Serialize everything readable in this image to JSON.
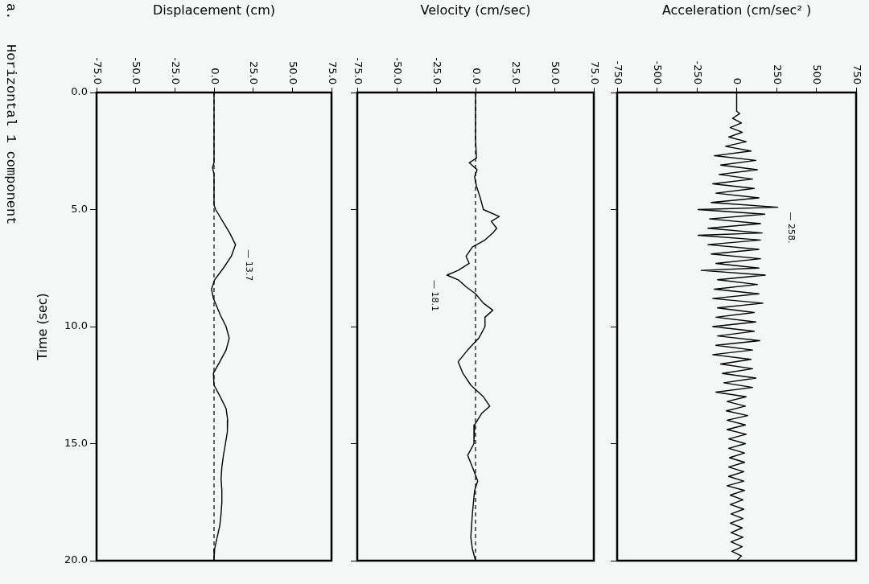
{
  "chart_data": [
    {
      "type": "line",
      "ylabel": "Time (sec)",
      "xlabel": "Displacement (cm)",
      "ylim": [
        20,
        0
      ],
      "yticks": [
        {
          "value": 0,
          "label": "0.0"
        },
        {
          "value": 5,
          "label": "5.0"
        },
        {
          "value": 10,
          "label": "10.0"
        },
        {
          "value": 15,
          "label": "15.0"
        },
        {
          "value": 20,
          "label": "20.0"
        }
      ],
      "xlim": [
        -75,
        75
      ],
      "xticks": [
        {
          "value": -75,
          "label": "-75.0"
        },
        {
          "value": -50,
          "label": "-50.0"
        },
        {
          "value": -25,
          "label": "-25.0"
        },
        {
          "value": 0,
          "label": "0.0"
        },
        {
          "value": 25,
          "label": "25.0"
        },
        {
          "value": 50,
          "label": "50.0"
        },
        {
          "value": 75,
          "label": "75.0"
        }
      ],
      "series": [
        {
          "color": "#000000",
          "x": [
            0,
            0,
            -1,
            0,
            0,
            1,
            10,
            13.7,
            11,
            6,
            0.4,
            -1.6,
            -0.4,
            4,
            7.7,
            9.7,
            7.7,
            3.7,
            -0.4,
            0,
            4,
            7.7,
            8.7,
            8.5,
            7.3,
            6,
            5,
            4.5,
            5,
            5,
            4.5,
            3.7,
            2,
            0.4,
            0
          ],
          "values": [
            0,
            3,
            3.2,
            3.5,
            4.8,
            5,
            6,
            6.5,
            7,
            7.5,
            8,
            8.4,
            8.8,
            9.5,
            10,
            10.5,
            11,
            11.5,
            12,
            12.5,
            13,
            13.5,
            14,
            14.5,
            15,
            15.5,
            16,
            16.5,
            17,
            17.5,
            18,
            18.5,
            19,
            19.5,
            20
          ]
        }
      ],
      "ref_lines": [
        {
          "axis": "x",
          "value": 0,
          "line_style": "dashed",
          "color": "#000000"
        }
      ],
      "annotations": [
        {
          "text": "— 13.7",
          "x": 13.7,
          "y": 6.5
        },
        "a.   Horizontal 1 component"
      ]
    },
    {
      "type": "line",
      "xlabel": "Velocity (cm/sec)",
      "ylim": [
        20,
        0
      ],
      "yticks": [
        {
          "value": 0,
          "label": null
        },
        {
          "value": 5,
          "label": null
        },
        {
          "value": 10,
          "label": null
        },
        {
          "value": 15,
          "label": null
        },
        {
          "value": 20,
          "label": null
        }
      ],
      "xlim": [
        -75,
        75
      ],
      "xticks": [
        {
          "value": -75,
          "label": "-75.0"
        },
        {
          "value": -50,
          "label": "-50.0"
        },
        {
          "value": -25,
          "label": "-25.0"
        },
        {
          "value": 0,
          "label": "0.0"
        },
        {
          "value": 25,
          "label": "25.0"
        },
        {
          "value": 50,
          "label": "50.0"
        },
        {
          "value": 75,
          "label": "75.0"
        }
      ],
      "tick_labels": "x",
      "series": [
        {
          "color": "#000000",
          "x": [
            0,
            0,
            0.6,
            -4,
            1,
            -0.6,
            0.6,
            3,
            5,
            15,
            10,
            13.4,
            11,
            6,
            -2,
            -6,
            -4,
            -11,
            -18.1,
            -11,
            -6,
            0,
            5,
            11,
            6,
            6,
            2,
            -5,
            -11,
            -8,
            -3,
            5,
            9,
            4,
            -0.6,
            -1,
            -5,
            -2,
            1.4,
            -0.6,
            -2,
            -3,
            -2,
            0
          ],
          "values": [
            0,
            2,
            2.8,
            3,
            3.3,
            3.6,
            4,
            4.5,
            5,
            5.3,
            5.5,
            5.8,
            6,
            6.3,
            6.6,
            7,
            7.3,
            7.6,
            7.8,
            8,
            8.3,
            8.6,
            9,
            9.3,
            9.6,
            10,
            10.5,
            11,
            11.5,
            12,
            12.5,
            13,
            13.4,
            13.7,
            14.2,
            15,
            15.5,
            16,
            16.6,
            17,
            18,
            19,
            19.5,
            20
          ]
        }
      ],
      "ref_lines": [
        {
          "axis": "x",
          "value": 0,
          "line_style": "dashed",
          "color": "#000000"
        }
      ],
      "annotations": [
        {
          "text": "— 18.1",
          "x": -18.1,
          "y": 7.8
        }
      ]
    },
    {
      "type": "line",
      "xlabel": "Acceleration (cm/sec² )",
      "ylim": [
        20,
        0
      ],
      "yticks": [
        {
          "value": 0,
          "label": null
        },
        {
          "value": 5,
          "label": null
        },
        {
          "value": 10,
          "label": null
        },
        {
          "value": 15,
          "label": null
        },
        {
          "value": 20,
          "label": null
        }
      ],
      "xlim": [
        -750,
        750
      ],
      "xticks": [
        -750,
        -500,
        -250,
        0,
        250,
        500,
        750
      ],
      "tick_labels": "x",
      "series": [
        {
          "color": "#000000",
          "x": [
            0,
            0,
            20,
            -25,
            30,
            -40,
            35,
            -50,
            60,
            -70,
            90,
            -140,
            120,
            -100,
            130,
            -110,
            100,
            -150,
            110,
            -130,
            140,
            -160,
            258,
            -242,
            177,
            -170,
            150,
            -180,
            160,
            -242,
            150,
            -180,
            140,
            -160,
            150,
            -130,
            140,
            -222,
            180,
            -120,
            130,
            -140,
            140,
            -150,
            165,
            -120,
            110,
            -130,
            120,
            -150,
            110,
            -120,
            145,
            -130,
            100,
            -150,
            90,
            -100,
            100,
            -90,
            121,
            -80,
            100,
            -130,
            60,
            -60,
            55,
            -65,
            70,
            -60,
            55,
            -60,
            60,
            -50,
            55,
            -50,
            50,
            -45,
            50,
            -50,
            45,
            -50,
            45,
            -60,
            50,
            -40,
            40,
            -40,
            45,
            -35,
            40,
            -40,
            35,
            -35,
            40,
            -35,
            35,
            -30,
            30,
            0
          ],
          "values": [
            0,
            0.8,
            0.9,
            1.1,
            1.3,
            1.5,
            1.7,
            1.9,
            2.1,
            2.3,
            2.5,
            2.7,
            2.9,
            3.1,
            3.3,
            3.5,
            3.7,
            3.9,
            4.1,
            4.3,
            4.5,
            4.7,
            4.9,
            5.0,
            5.2,
            5.4,
            5.6,
            5.8,
            6.0,
            6.1,
            6.3,
            6.5,
            6.7,
            6.9,
            7.1,
            7.3,
            7.5,
            7.6,
            7.8,
            8.0,
            8.2,
            8.4,
            8.6,
            8.8,
            9.0,
            9.2,
            9.4,
            9.6,
            9.8,
            10.0,
            10.2,
            10.4,
            10.6,
            10.8,
            11.0,
            11.2,
            11.4,
            11.6,
            11.8,
            12.0,
            12.2,
            12.4,
            12.6,
            12.8,
            13.0,
            13.2,
            13.4,
            13.6,
            13.8,
            14.0,
            14.2,
            14.4,
            14.6,
            14.8,
            15.0,
            15.2,
            15.4,
            15.6,
            15.8,
            16.0,
            16.2,
            16.4,
            16.6,
            16.8,
            17.0,
            17.2,
            17.4,
            17.6,
            17.8,
            18.0,
            18.2,
            18.4,
            18.6,
            18.8,
            19.0,
            19.2,
            19.4,
            19.6,
            19.8,
            20.0
          ]
        }
      ],
      "annotations": [
        {
          "text": "— 258.",
          "x": 258,
          "y": 4.9
        }
      ]
    }
  ]
}
